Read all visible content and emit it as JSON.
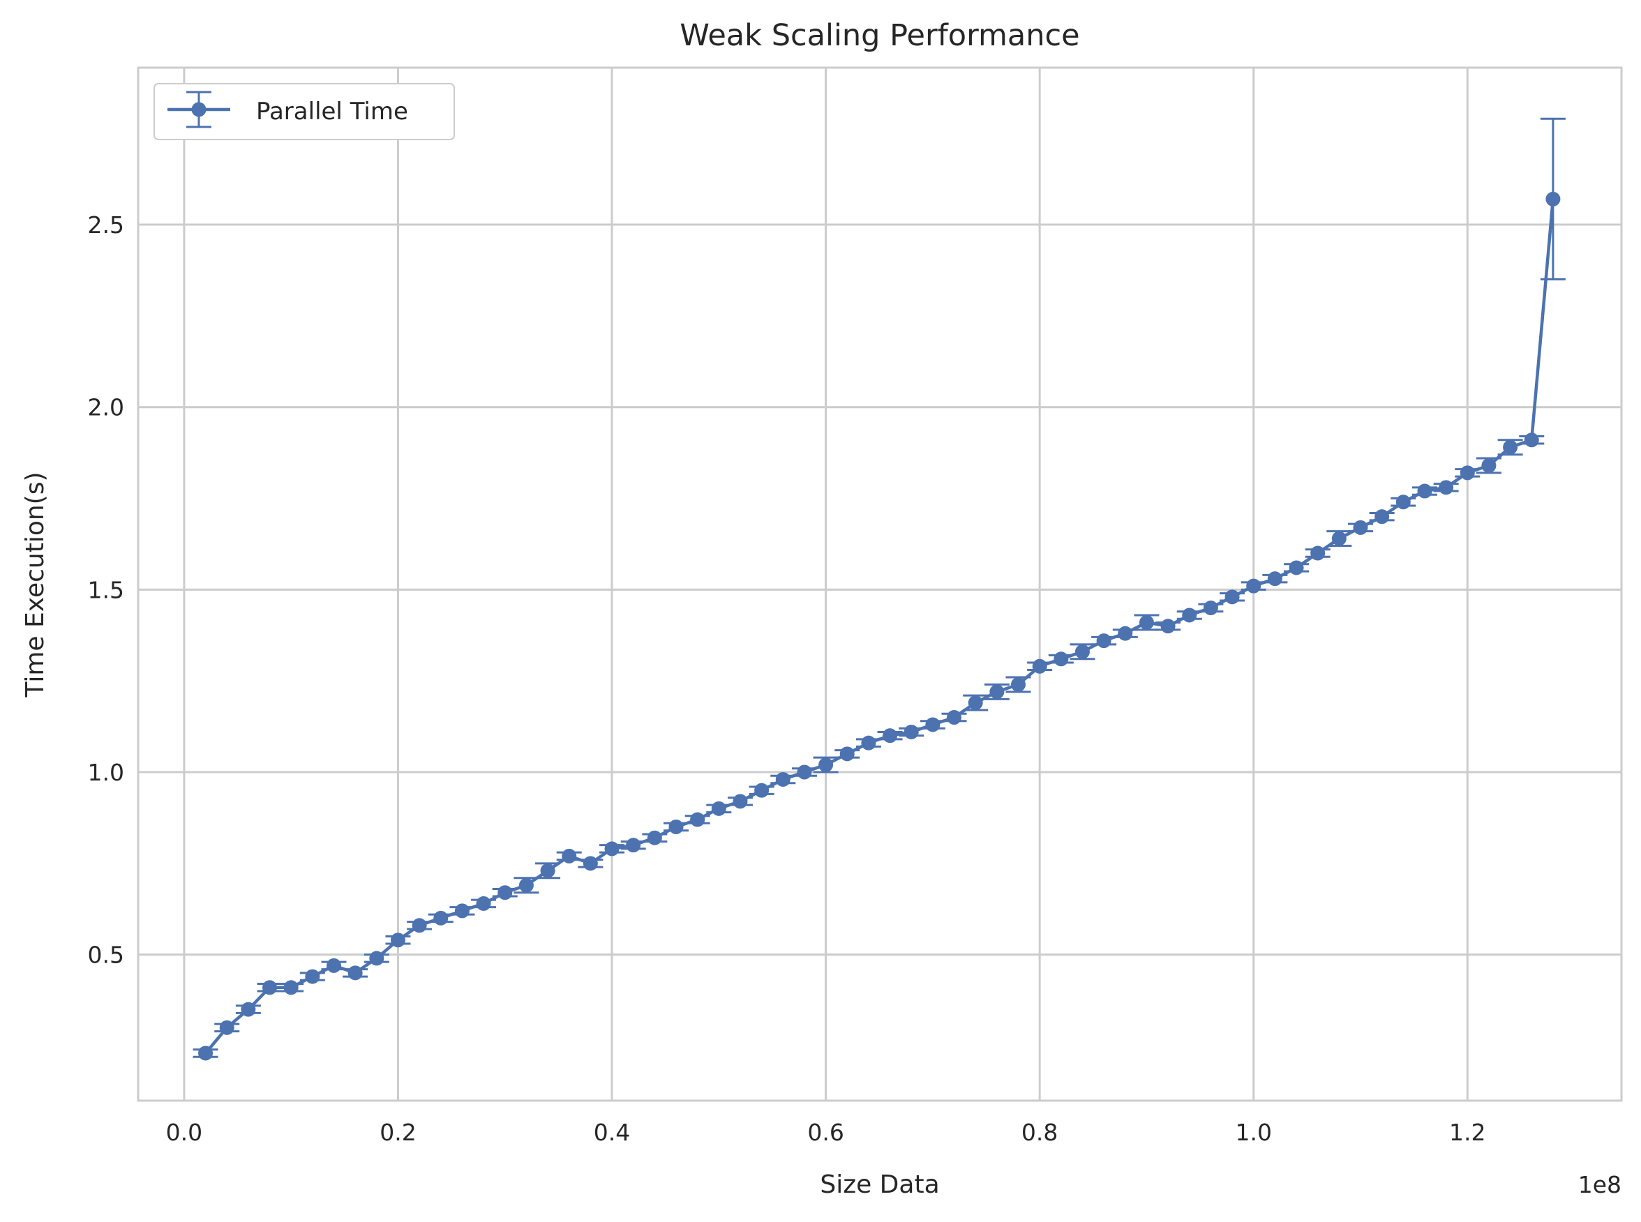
{
  "chart_data": {
    "type": "line",
    "title": "Weak Scaling Performance",
    "xlabel": "Size Data",
    "ylabel": "Time Execution(s)",
    "x_offset_label": "1e8",
    "x_tick_labels": [
      "0.0",
      "0.2",
      "0.4",
      "0.6",
      "0.8",
      "1.0",
      "1.2"
    ],
    "y_tick_labels": [
      "0.5",
      "1.0",
      "1.5",
      "2.0",
      "2.5"
    ],
    "x_ticks": [
      0,
      20000000,
      40000000,
      60000000,
      80000000,
      100000000,
      120000000
    ],
    "y_ticks": [
      0.5,
      1.0,
      1.5,
      2.0,
      2.5
    ],
    "xlim": [
      -4300000,
      134400000
    ],
    "ylim": [
      0.1,
      2.93
    ],
    "grid": true,
    "legend_position": "top-left",
    "colors": {
      "series": "#4c72b0",
      "grid": "#cccccc",
      "spine": "#cccccc"
    },
    "series": [
      {
        "name": "Parallel Time",
        "x": [
          2000000,
          4000000,
          6000000,
          8000000,
          10000000,
          12000000,
          14000000,
          16000000,
          18000000,
          20000000,
          22000000,
          24000000,
          26000000,
          28000000,
          30000000,
          32000000,
          34000000,
          36000000,
          38000000,
          40000000,
          42000000,
          44000000,
          46000000,
          48000000,
          50000000,
          52000000,
          54000000,
          56000000,
          58000000,
          60000000,
          62000000,
          64000000,
          66000000,
          68000000,
          70000000,
          72000000,
          74000000,
          76000000,
          78000000,
          80000000,
          82000000,
          84000000,
          86000000,
          88000000,
          90000000,
          92000000,
          94000000,
          96000000,
          98000000,
          100000000,
          102000000,
          104000000,
          106000000,
          108000000,
          110000000,
          112000000,
          114000000,
          116000000,
          118000000,
          120000000,
          122000000,
          124000000,
          126000000,
          128000000
        ],
        "values": [
          0.23,
          0.3,
          0.35,
          0.41,
          0.41,
          0.44,
          0.47,
          0.45,
          0.49,
          0.54,
          0.58,
          0.6,
          0.62,
          0.64,
          0.67,
          0.69,
          0.73,
          0.77,
          0.75,
          0.79,
          0.8,
          0.82,
          0.85,
          0.87,
          0.9,
          0.92,
          0.95,
          0.98,
          1.0,
          1.02,
          1.05,
          1.08,
          1.1,
          1.11,
          1.13,
          1.15,
          1.19,
          1.22,
          1.24,
          1.29,
          1.31,
          1.33,
          1.36,
          1.38,
          1.41,
          1.4,
          1.43,
          1.45,
          1.48,
          1.51,
          1.53,
          1.56,
          1.6,
          1.64,
          1.67,
          1.7,
          1.74,
          1.77,
          1.78,
          1.82,
          1.84,
          1.89,
          1.91,
          2.57
        ],
        "errors": [
          0.01,
          0.01,
          0.01,
          0.01,
          0.01,
          0.01,
          0.01,
          0.01,
          0.01,
          0.01,
          0.01,
          0.01,
          0.01,
          0.01,
          0.01,
          0.02,
          0.02,
          0.01,
          0.01,
          0.01,
          0.01,
          0.01,
          0.01,
          0.01,
          0.01,
          0.01,
          0.01,
          0.01,
          0.01,
          0.02,
          0.01,
          0.01,
          0.01,
          0.01,
          0.01,
          0.01,
          0.02,
          0.02,
          0.02,
          0.01,
          0.01,
          0.02,
          0.01,
          0.01,
          0.02,
          0.01,
          0.01,
          0.01,
          0.01,
          0.01,
          0.01,
          0.01,
          0.01,
          0.02,
          0.01,
          0.01,
          0.01,
          0.01,
          0.01,
          0.01,
          0.02,
          0.02,
          0.01,
          0.22
        ]
      }
    ]
  }
}
